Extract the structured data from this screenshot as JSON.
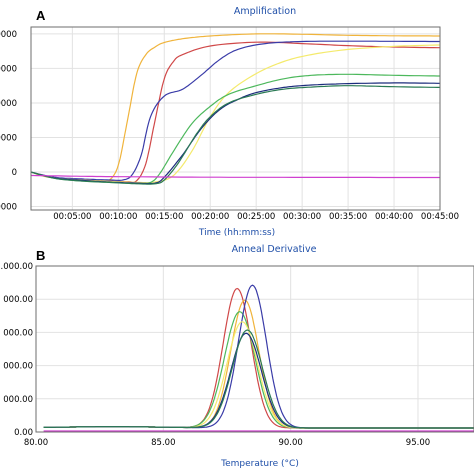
{
  "chart_data": [
    {
      "panel": "A",
      "type": "line",
      "title": "Amplification",
      "xlabel": "Time (hh:mm:ss)",
      "ylabel": "",
      "xlim": [
        0.5,
        45
      ],
      "ylim": [
        -1100,
        4200
      ],
      "grid": true,
      "x_ticks": [
        {
          "v": 5,
          "label": "00:05:00"
        },
        {
          "v": 10,
          "label": "00:10:00"
        },
        {
          "v": 15,
          "label": "00:15:00"
        },
        {
          "v": 20,
          "label": "00:20:00"
        },
        {
          "v": 25,
          "label": "00:25:00"
        },
        {
          "v": 30,
          "label": "00:30:00"
        },
        {
          "v": 35,
          "label": "00:35:00"
        },
        {
          "v": 40,
          "label": "00:40:00"
        },
        {
          "v": 45,
          "label": "00:45:00"
        }
      ],
      "y_ticks": [
        {
          "v": 4000,
          "label": "0000"
        },
        {
          "v": 3000,
          "label": "0000"
        },
        {
          "v": 2000,
          "label": "0000"
        },
        {
          "v": 1000,
          "label": "0000"
        },
        {
          "v": 0,
          "label": "0"
        },
        {
          "v": -1000,
          "label": "0000"
        }
      ],
      "series": [
        {
          "color": "#f0b43c",
          "values": [
            [
              0.5,
              0
            ],
            [
              2,
              -130
            ],
            [
              4,
              -190
            ],
            [
              6,
              -230
            ],
            [
              8,
              -255
            ],
            [
              9,
              -240
            ],
            [
              10,
              200
            ],
            [
              11,
              1500
            ],
            [
              12,
              2850
            ],
            [
              13,
              3400
            ],
            [
              14,
              3620
            ],
            [
              15,
              3750
            ],
            [
              17,
              3860
            ],
            [
              20,
              3940
            ],
            [
              25,
              4000
            ],
            [
              30,
              3990
            ],
            [
              35,
              3960
            ],
            [
              40,
              3945
            ],
            [
              45,
              3940
            ]
          ]
        },
        {
          "color": "#d04848",
          "values": [
            [
              0.5,
              0
            ],
            [
              3,
              -160
            ],
            [
              6,
              -215
            ],
            [
              9,
              -260
            ],
            [
              11,
              -280
            ],
            [
              12,
              -250
            ],
            [
              13,
              250
            ],
            [
              14,
              1500
            ],
            [
              15,
              2700
            ],
            [
              16,
              3200
            ],
            [
              17,
              3400
            ],
            [
              20,
              3650
            ],
            [
              25,
              3760
            ],
            [
              30,
              3720
            ],
            [
              35,
              3660
            ],
            [
              40,
              3620
            ],
            [
              45,
              3600
            ]
          ]
        },
        {
          "color": "#3a3ca8",
          "values": [
            [
              0.5,
              0
            ],
            [
              3,
              -150
            ],
            [
              6,
              -200
            ],
            [
              9,
              -230
            ],
            [
              10.5,
              -230
            ],
            [
              11.5,
              -80
            ],
            [
              12.5,
              500
            ],
            [
              13.5,
              1600
            ],
            [
              15,
              2200
            ],
            [
              17,
              2400
            ],
            [
              19,
              2800
            ],
            [
              21,
              3250
            ],
            [
              23,
              3550
            ],
            [
              26,
              3720
            ],
            [
              30,
              3780
            ],
            [
              35,
              3790
            ],
            [
              40,
              3785
            ],
            [
              45,
              3780
            ]
          ]
        },
        {
          "color": "#f4ea6c",
          "values": [
            [
              0.5,
              0
            ],
            [
              3,
              -170
            ],
            [
              6,
              -230
            ],
            [
              9,
              -270
            ],
            [
              12,
              -300
            ],
            [
              14,
              -290
            ],
            [
              16,
              -100
            ],
            [
              18,
              600
            ],
            [
              20,
              1600
            ],
            [
              22,
              2300
            ],
            [
              25,
              2850
            ],
            [
              28,
              3200
            ],
            [
              31,
              3400
            ],
            [
              35,
              3550
            ],
            [
              40,
              3640
            ],
            [
              45,
              3680
            ]
          ]
        },
        {
          "color": "#4cb85c",
          "values": [
            [
              0.5,
              0
            ],
            [
              3,
              -180
            ],
            [
              6,
              -260
            ],
            [
              9,
              -300
            ],
            [
              12,
              -330
            ],
            [
              13.5,
              -300
            ],
            [
              14.5,
              -50
            ],
            [
              16,
              600
            ],
            [
              18,
              1400
            ],
            [
              20,
              1900
            ],
            [
              22,
              2250
            ],
            [
              25,
              2500
            ],
            [
              28,
              2700
            ],
            [
              31,
              2800
            ],
            [
              35,
              2830
            ],
            [
              40,
              2800
            ],
            [
              45,
              2780
            ]
          ]
        },
        {
          "color": "#1c2c7c",
          "values": [
            [
              0.5,
              0
            ],
            [
              3,
              -170
            ],
            [
              6,
              -240
            ],
            [
              9,
              -290
            ],
            [
              12,
              -320
            ],
            [
              14,
              -320
            ],
            [
              15,
              -150
            ],
            [
              17,
              500
            ],
            [
              19,
              1250
            ],
            [
              21,
              1800
            ],
            [
              23,
              2100
            ],
            [
              25,
              2300
            ],
            [
              28,
              2450
            ],
            [
              31,
              2520
            ],
            [
              35,
              2560
            ],
            [
              40,
              2580
            ],
            [
              45,
              2570
            ]
          ]
        },
        {
          "color": "#2a7a54",
          "values": [
            [
              0.5,
              0
            ],
            [
              3,
              -180
            ],
            [
              6,
              -260
            ],
            [
              9,
              -300
            ],
            [
              12,
              -340
            ],
            [
              14,
              -340
            ],
            [
              15,
              -230
            ],
            [
              16.5,
              250
            ],
            [
              18.5,
              1100
            ],
            [
              20,
              1600
            ],
            [
              22,
              2000
            ],
            [
              25,
              2250
            ],
            [
              28,
              2400
            ],
            [
              31,
              2460
            ],
            [
              35,
              2500
            ],
            [
              40,
              2470
            ],
            [
              45,
              2450
            ]
          ]
        },
        {
          "color": "#cf3fcf",
          "values": [
            [
              0.5,
              -100
            ],
            [
              5,
              -120
            ],
            [
              10,
              -135
            ],
            [
              20,
              -150
            ],
            [
              30,
              -155
            ],
            [
              40,
              -158
            ],
            [
              45,
              -160
            ]
          ]
        }
      ]
    },
    {
      "panel": "B",
      "type": "line",
      "title": "Anneal Derivative",
      "xlabel": "Temperature (°C)",
      "ylabel": "",
      "xlim": [
        80,
        97.2
      ],
      "ylim": [
        0,
        5000
      ],
      "grid": true,
      "x_ticks": [
        {
          "v": 80,
          "label": "80.00"
        },
        {
          "v": 85,
          "label": "85.00"
        },
        {
          "v": 90,
          "label": "90.00"
        },
        {
          "v": 95,
          "label": "95.00"
        }
      ],
      "y_ticks": [
        {
          "v": 5000,
          "label": ".000.00"
        },
        {
          "v": 4000,
          "label": "000.00"
        },
        {
          "v": 3000,
          "label": "000.00"
        },
        {
          "v": 2000,
          "label": "000.00"
        },
        {
          "v": 1000,
          "label": "000.00"
        },
        {
          "v": 0,
          "label": "0.00"
        }
      ],
      "series": [
        {
          "color": "#d04848",
          "peak": 87.9,
          "height": 4200,
          "width": 0.55
        },
        {
          "color": "#f0b43c",
          "peak": 88.2,
          "height": 3850,
          "width": 0.55
        },
        {
          "color": "#4cb85c",
          "peak": 88.0,
          "height": 3500,
          "width": 0.6
        },
        {
          "color": "#3a3ca8",
          "peak": 88.5,
          "height": 4300,
          "width": 0.55
        },
        {
          "color": "#f4ea6c",
          "peak": 88.1,
          "height": 3200,
          "width": 0.6
        },
        {
          "color": "#1c2c7c",
          "peak": 88.25,
          "height": 2850,
          "width": 0.6
        },
        {
          "color": "#2a7a54",
          "peak": 88.3,
          "height": 2950,
          "width": 0.6
        },
        {
          "color": "#cf3fcf",
          "peak": 88.2,
          "height": 0,
          "width": 0.6
        }
      ]
    }
  ]
}
